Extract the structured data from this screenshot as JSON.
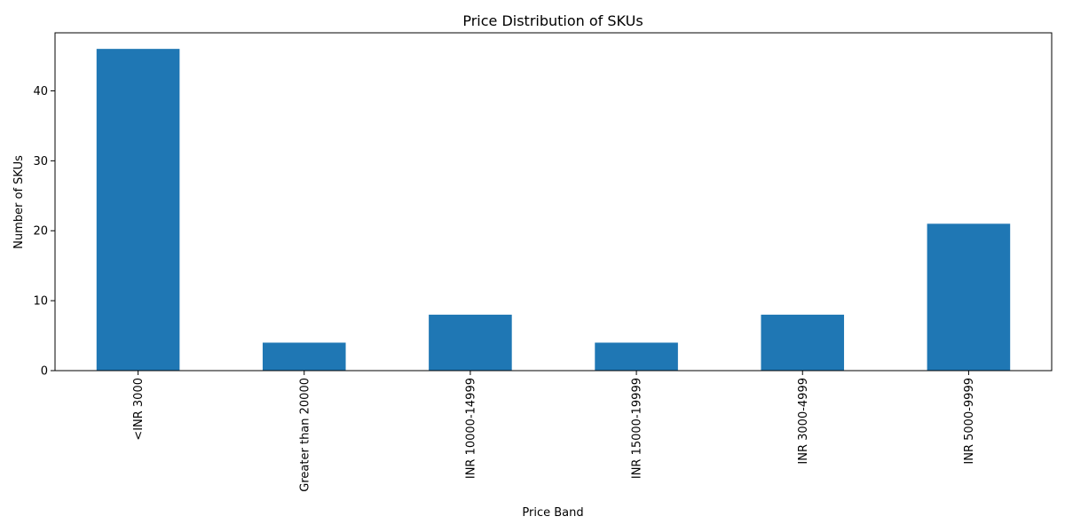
{
  "chart_data": {
    "type": "bar",
    "title": "Price Distribution of SKUs",
    "xlabel": "Price Band",
    "ylabel": "Number of SKUs",
    "categories": [
      "<INR 3000",
      "Greater than 20000",
      "INR 10000-14999",
      "INR 15000-19999",
      "INR 3000-4999",
      "INR 5000-9999"
    ],
    "values": [
      46,
      4,
      8,
      4,
      8,
      21
    ],
    "ylim": [
      0,
      48.3
    ],
    "yticks": [
      0,
      10,
      20,
      30,
      40
    ],
    "grid": false,
    "legend": "none",
    "bar_color": "#1f77b4"
  }
}
